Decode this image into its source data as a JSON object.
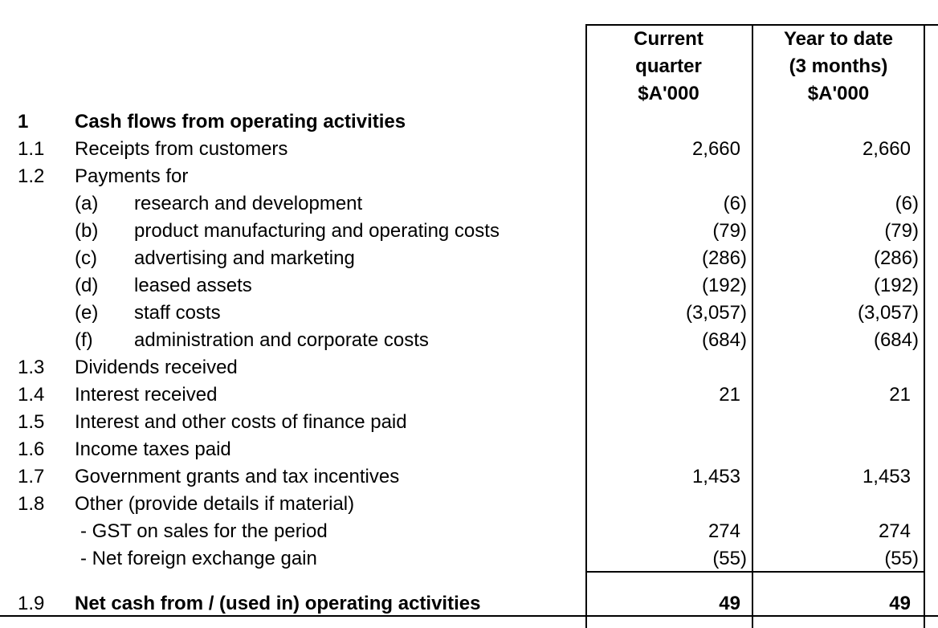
{
  "columns": {
    "current": [
      "Current",
      "quarter",
      "$A'000"
    ],
    "ytd": [
      "Year to date",
      "(3 months)",
      "$A'000"
    ]
  },
  "section": {
    "num": "1",
    "title": "Cash flows from operating activities"
  },
  "rows": [
    {
      "num": "1.1",
      "label": "Receipts from customers",
      "current": "2,660",
      "ytd": "2,660"
    },
    {
      "num": "1.2",
      "label": "Payments for",
      "current": "",
      "ytd": ""
    },
    {
      "sub": "(a)",
      "label": "research and development",
      "current": "(6)",
      "ytd": "(6)"
    },
    {
      "sub": "(b)",
      "label": "product manufacturing and operating costs",
      "current": "(79)",
      "ytd": "(79)"
    },
    {
      "sub": "(c)",
      "label": "advertising and marketing",
      "current": "(286)",
      "ytd": "(286)"
    },
    {
      "sub": "(d)",
      "label": "leased assets",
      "current": "(192)",
      "ytd": "(192)"
    },
    {
      "sub": "(e)",
      "label": "staff costs",
      "current": "(3,057)",
      "ytd": "(3,057)"
    },
    {
      "sub": "(f)",
      "label": "administration and corporate costs",
      "current": "(684)",
      "ytd": "(684)"
    },
    {
      "num": "1.3",
      "label": "Dividends received",
      "current": "",
      "ytd": ""
    },
    {
      "num": "1.4",
      "label": "Interest received",
      "current": "21",
      "ytd": "21"
    },
    {
      "num": "1.5",
      "label": "Interest and other costs of finance paid",
      "current": "",
      "ytd": ""
    },
    {
      "num": "1.6",
      "label": "Income taxes paid",
      "current": "",
      "ytd": ""
    },
    {
      "num": "1.7",
      "label": "Government grants and tax incentives",
      "current": "1,453",
      "ytd": "1,453"
    },
    {
      "num": "1.8",
      "label": "Other (provide details if material)",
      "current": "",
      "ytd": ""
    },
    {
      "label": "- GST on sales for the period",
      "current": "274",
      "ytd": "274"
    },
    {
      "label": "- Net foreign exchange gain",
      "current": "(55)",
      "ytd": "(55)"
    }
  ],
  "total": {
    "num": "1.9",
    "label": "Net cash from / (used in) operating activities",
    "current": "49",
    "ytd": "49"
  }
}
